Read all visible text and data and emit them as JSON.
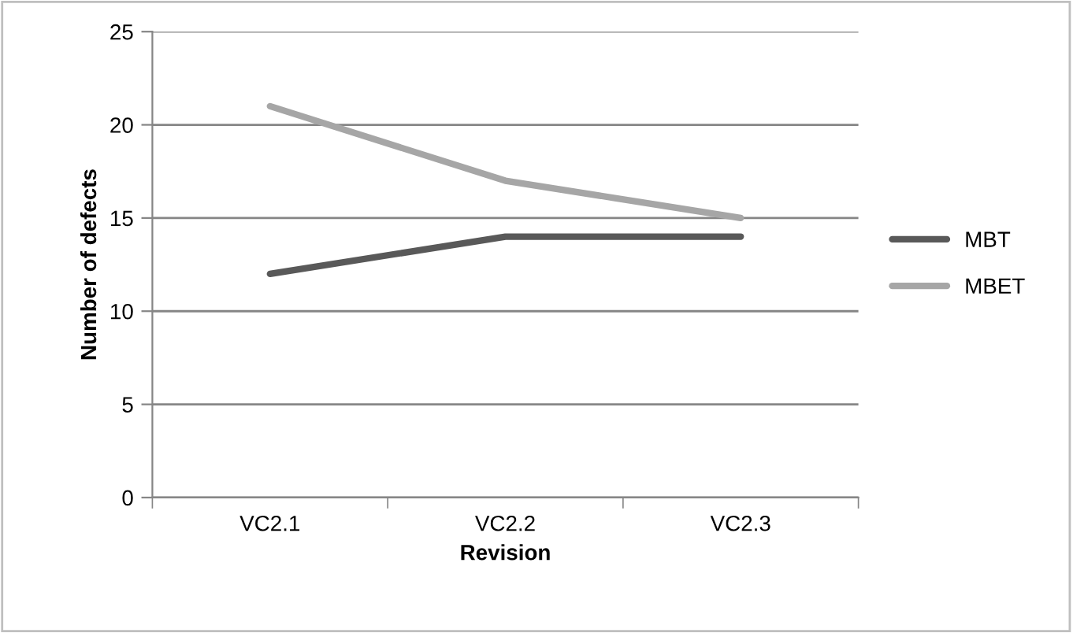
{
  "chart_data": {
    "type": "line",
    "xlabel": "Revision",
    "ylabel": "Number of defects",
    "categories": [
      "VC2.1",
      "VC2.2",
      "VC2.3"
    ],
    "series": [
      {
        "name": "MBT",
        "color": "#595959",
        "values": [
          12,
          14,
          14
        ]
      },
      {
        "name": "MBET",
        "color": "#a6a6a6",
        "values": [
          21,
          17,
          15
        ]
      }
    ],
    "ylim": [
      0,
      25
    ],
    "yticks": [
      0,
      5,
      10,
      15,
      20,
      25
    ],
    "grid": "y",
    "legend": "right",
    "marker": "none",
    "line_style": "solid"
  }
}
